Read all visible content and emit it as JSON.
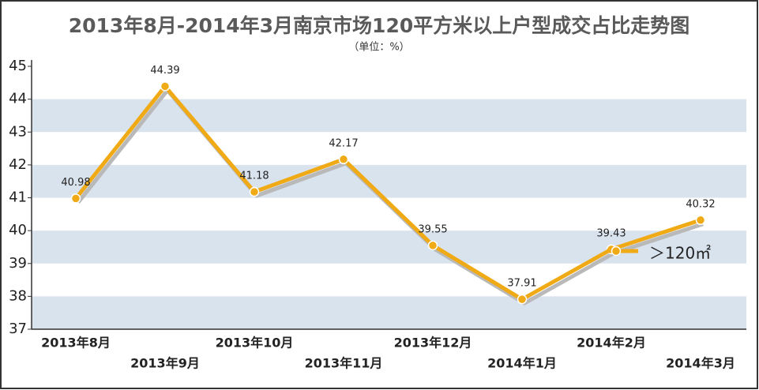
{
  "chart_data": {
    "type": "line",
    "title": "2013年8月-2014年3月南京市场120平方米以上户型成交占比走势图",
    "subtitle": "（单位：%）",
    "categories": [
      "2013年8月",
      "2013年9月",
      "2013年10月",
      "2013年11月",
      "2013年12月",
      "2014年1月",
      "2014年2月",
      "2014年3月"
    ],
    "series": [
      {
        "name": "＞120㎡",
        "color": "#f0aa16",
        "values": [
          40.98,
          44.39,
          41.18,
          42.17,
          39.55,
          37.91,
          39.43,
          40.32
        ]
      }
    ],
    "ylim": [
      37,
      45
    ],
    "yticks": [
      37,
      38,
      39,
      40,
      41,
      42,
      43,
      44,
      45
    ],
    "grid": true
  }
}
